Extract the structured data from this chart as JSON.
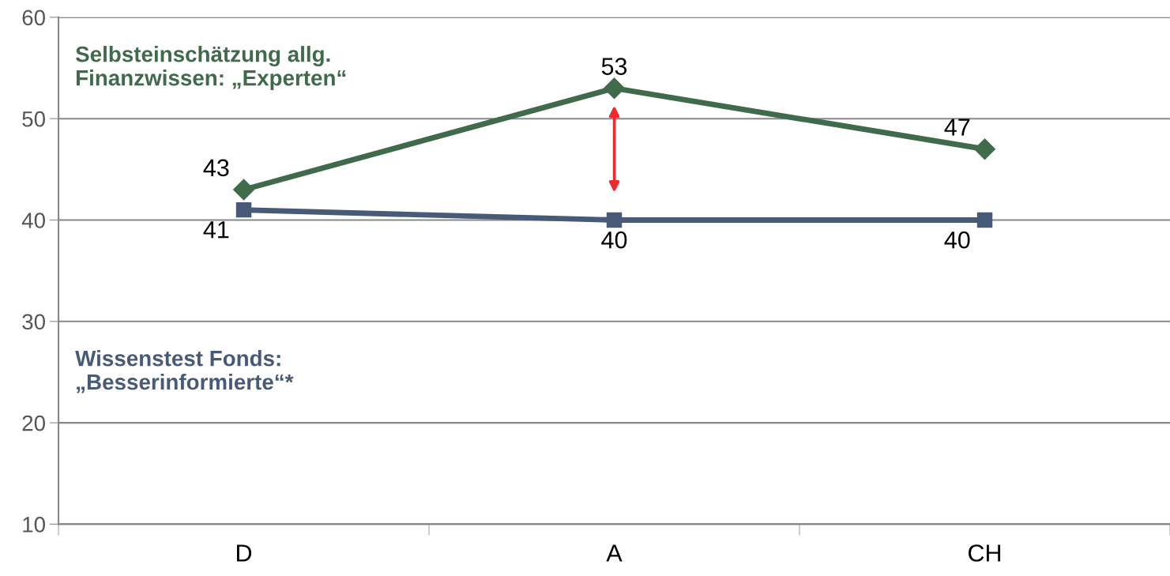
{
  "chart_data": {
    "type": "line",
    "categories": [
      "D",
      "A",
      "CH"
    ],
    "series": [
      {
        "name": "Selbsteinschätzung allg.\nFinanzwissen: „Experten“",
        "color": "#3f6b4b",
        "marker": "diamond",
        "values": [
          43,
          53,
          47
        ]
      },
      {
        "name": "Wissenstest Fonds:\n„Besserinformierte“*",
        "color": "#475a78",
        "marker": "square",
        "values": [
          41,
          40,
          40
        ]
      }
    ],
    "ylim": [
      10,
      60
    ],
    "yticks": [
      10,
      20,
      30,
      40,
      50,
      60
    ],
    "grid": "y",
    "legend": false,
    "data_labels": true
  }
}
